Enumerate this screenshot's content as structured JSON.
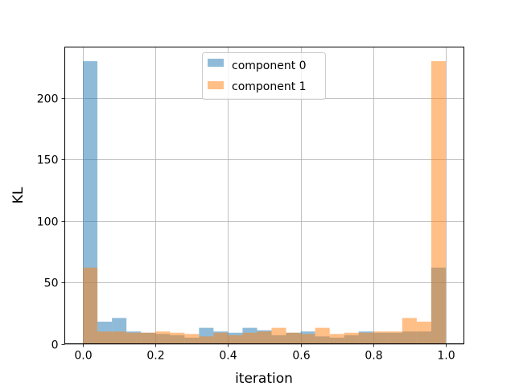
{
  "chart_data": {
    "type": "bar",
    "title": "",
    "xlabel": "iteration",
    "ylabel": "KL",
    "xlim": [
      -0.05,
      1.05
    ],
    "ylim": [
      0,
      241.5
    ],
    "grid": true,
    "legend_placement": "top-center",
    "x_ticks": [
      0.0,
      0.2,
      0.4,
      0.6,
      0.8,
      1.0
    ],
    "x_tick_labels": [
      "0.0",
      "0.2",
      "0.4",
      "0.6",
      "0.8",
      "1.0"
    ],
    "y_ticks": [
      0,
      50,
      100,
      150,
      200
    ],
    "y_tick_labels": [
      "0",
      "50",
      "100",
      "150",
      "200"
    ],
    "bin_edges": [
      0.0,
      0.04,
      0.08,
      0.12,
      0.16,
      0.2,
      0.24,
      0.28,
      0.32,
      0.36,
      0.4,
      0.44,
      0.48,
      0.52,
      0.56,
      0.6,
      0.64,
      0.68,
      0.72,
      0.76,
      0.8,
      0.84,
      0.88,
      0.92,
      0.96,
      1.0
    ],
    "series": [
      {
        "name": "component 0",
        "color": "#1f77b4",
        "values": [
          230,
          18,
          21,
          10,
          9,
          8,
          7,
          5,
          13,
          10,
          9,
          13,
          11,
          7,
          9,
          10,
          6,
          5,
          7,
          10,
          9,
          9,
          10,
          10,
          62
        ]
      },
      {
        "name": "component 1",
        "color": "#ff7f0e",
        "values": [
          62,
          10,
          10,
          9,
          9,
          10,
          9,
          8,
          6,
          9,
          7,
          9,
          10,
          13,
          9,
          8,
          13,
          8,
          9,
          9,
          10,
          10,
          21,
          18,
          230
        ]
      }
    ]
  }
}
